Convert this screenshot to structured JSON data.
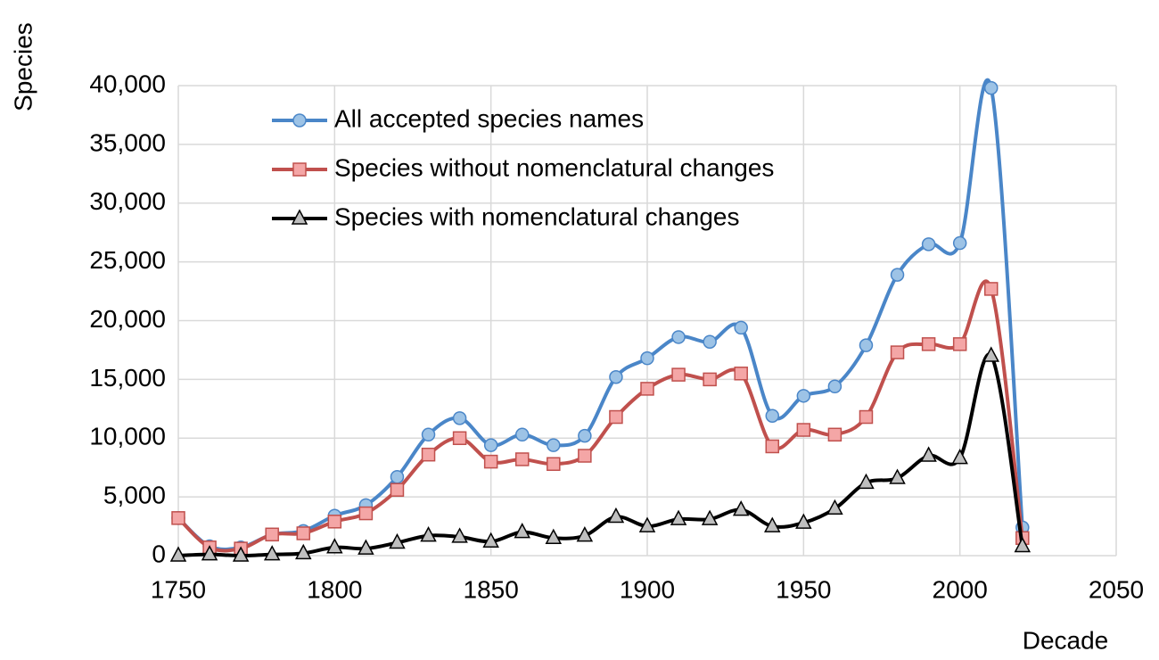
{
  "chart_data": {
    "type": "line",
    "x_label": "Decade",
    "y_label": "Species",
    "x": [
      1750,
      1760,
      1770,
      1780,
      1790,
      1800,
      1810,
      1820,
      1830,
      1840,
      1850,
      1860,
      1870,
      1880,
      1890,
      1900,
      1910,
      1920,
      1930,
      1940,
      1950,
      1960,
      1970,
      1980,
      1990,
      2000,
      2010,
      2020
    ],
    "series": [
      {
        "name": "All accepted species names",
        "color": "#4a86c8",
        "marker": "circle",
        "marker_color": "#9dc3e6",
        "values": [
          3200,
          800,
          700,
          1800,
          2100,
          3400,
          4300,
          6700,
          10300,
          11700,
          9400,
          10300,
          9400,
          10200,
          15200,
          16800,
          18600,
          18200,
          19400,
          11900,
          13600,
          14400,
          17900,
          23900,
          26500,
          26600,
          39800,
          2400
        ]
      },
      {
        "name": "Species without nomenclatural changes",
        "color": "#c0504d",
        "marker": "square",
        "marker_color": "#f4a6a6",
        "values": [
          3200,
          700,
          600,
          1800,
          1900,
          2900,
          3600,
          5600,
          8600,
          10000,
          8000,
          8200,
          7800,
          8500,
          11800,
          14200,
          15400,
          15000,
          15500,
          9300,
          10700,
          10300,
          11800,
          17300,
          18000,
          18000,
          22700,
          1500
        ]
      },
      {
        "name": "Species with nomenclatural changes",
        "color": "#000000",
        "marker": "triangle",
        "marker_color": "#bfbfbf",
        "values": [
          0,
          100,
          0,
          100,
          200,
          700,
          600,
          1100,
          1700,
          1600,
          1200,
          2000,
          1500,
          1700,
          3300,
          2500,
          3100,
          3100,
          3900,
          2500,
          2800,
          4000,
          6200,
          6600,
          8500,
          8300,
          17000,
          800
        ]
      }
    ],
    "xlim": [
      1750,
      2050
    ],
    "xticks": [
      1750,
      1800,
      1850,
      1900,
      1950,
      2000,
      2050
    ],
    "ylim": [
      0,
      40000
    ],
    "yticks": [
      0,
      {
        "value": 5000,
        "label": "5,000"
      },
      {
        "value": 10000,
        "label": "10,000"
      },
      {
        "value": 15000,
        "label": "15,000"
      },
      {
        "value": 20000,
        "label": "20,000"
      },
      {
        "value": 25000,
        "label": "25,000"
      },
      {
        "value": 30000,
        "label": "30,000"
      },
      {
        "value": 35000,
        "label": "35,000"
      },
      {
        "value": 40000,
        "label": "40,000"
      }
    ],
    "grid": true,
    "smooth": true,
    "legend": "upper-left"
  }
}
